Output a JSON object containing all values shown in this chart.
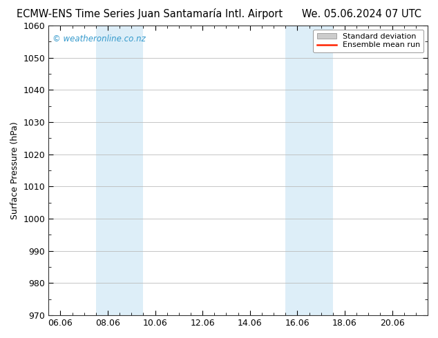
{
  "title_left": "ECMW-ENS Time Series Juan Santamaría Intl. Airport",
  "title_right": "We. 05.06.2024 07 UTC",
  "ylabel": "Surface Pressure (hPa)",
  "ylim": [
    970,
    1060
  ],
  "yticks": [
    970,
    980,
    990,
    1000,
    1010,
    1020,
    1030,
    1040,
    1050,
    1060
  ],
  "xtick_labels": [
    "06.06",
    "08.06",
    "10.06",
    "12.06",
    "14.06",
    "16.06",
    "18.06",
    "20.06"
  ],
  "xtick_positions": [
    0.0,
    2.0,
    4.0,
    6.0,
    8.0,
    10.0,
    12.0,
    14.0
  ],
  "xlim": [
    -0.5,
    15.5
  ],
  "shaded_bands": [
    {
      "x_start": 1.5,
      "x_end": 3.5
    },
    {
      "x_start": 9.5,
      "x_end": 11.5
    }
  ],
  "shaded_color": "#ddeef8",
  "watermark": "© weatheronline.co.nz",
  "watermark_color": "#3399cc",
  "bg_color": "#ffffff",
  "grid_color": "#bbbbbb",
  "legend_std_dev_color": "#cccccc",
  "legend_mean_color": "#ff2200",
  "title_fontsize": 10.5,
  "axis_label_fontsize": 9,
  "tick_fontsize": 9
}
